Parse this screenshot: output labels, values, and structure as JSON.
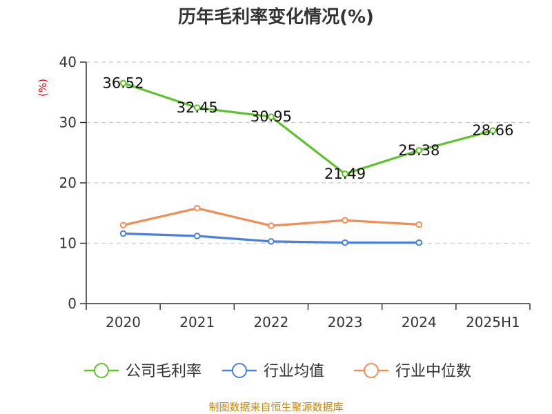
{
  "chart_data": {
    "type": "line",
    "title": "历年毛利率变化情况(%)",
    "unit_label": "(%)",
    "categories": [
      "2020",
      "2021",
      "2022",
      "2023",
      "2024",
      "2025H1"
    ],
    "ylim": [
      0,
      40
    ],
    "yticks": [
      0,
      10,
      20,
      30,
      40
    ],
    "grid": true,
    "legend_position": "bottom",
    "series": [
      {
        "name": "公司毛利率",
        "color": "#5fc12b",
        "values": [
          36.52,
          32.45,
          30.95,
          21.49,
          25.38,
          28.66
        ],
        "data_labels": [
          "36.52",
          "32.45",
          "30.95",
          "21.49",
          "25.38",
          "28.66"
        ]
      },
      {
        "name": "行业均值",
        "color": "#4a7fdc",
        "values": [
          11.6,
          11.2,
          10.3,
          10.1,
          10.1,
          null
        ],
        "data_labels": []
      },
      {
        "name": "行业中位数",
        "color": "#f28c55",
        "values": [
          13.0,
          15.8,
          12.9,
          13.8,
          13.1,
          null
        ],
        "data_labels": []
      }
    ],
    "source": "制图数据来自恒生聚源数据库"
  }
}
